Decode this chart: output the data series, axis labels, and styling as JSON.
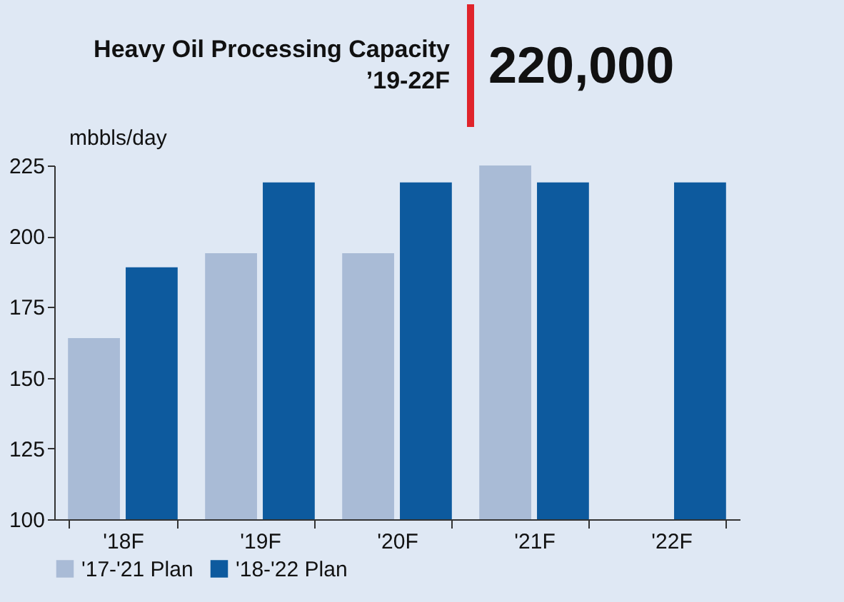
{
  "chart_data": {
    "type": "bar",
    "title": "Heavy Oil Processing Capacity ’19-22F",
    "annotations": [
      "220,000"
    ],
    "ylabel": "mbbls/day",
    "categories": [
      "'18F",
      "'19F",
      "'20F",
      "'21F",
      "'22F"
    ],
    "series": [
      {
        "name": "'17-'21 Plan",
        "color": "#a9bbd6",
        "values": [
          164,
          194,
          194,
          225,
          null
        ]
      },
      {
        "name": "'18-'22 Plan",
        "color": "#0d5a9e",
        "values": [
          189,
          219,
          219,
          219,
          219
        ]
      }
    ],
    "ylim": [
      100,
      225
    ],
    "yticks": [
      100,
      125,
      150,
      175,
      200,
      225
    ],
    "grid": false,
    "legend": "bottom"
  }
}
